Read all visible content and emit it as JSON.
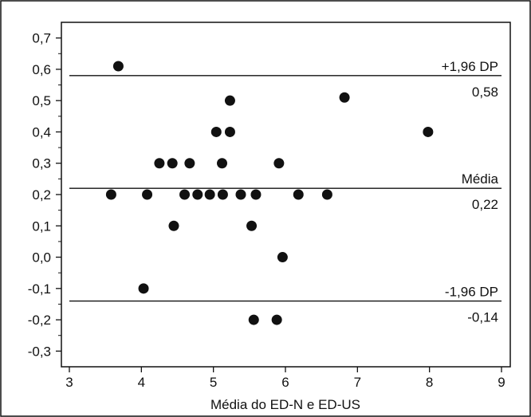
{
  "chart_data": {
    "type": "scatter",
    "title": "",
    "xlabel": "Média do ED-N e ED-US",
    "ylabel": "",
    "xlim": [
      3,
      9
    ],
    "ylim": [
      -0.35,
      0.75
    ],
    "grid": false,
    "x_ticks": [
      {
        "value": 3,
        "label": "3"
      },
      {
        "value": 4,
        "label": "4"
      },
      {
        "value": 5,
        "label": "5"
      },
      {
        "value": 6,
        "label": "6"
      },
      {
        "value": 7,
        "label": "7"
      },
      {
        "value": 8,
        "label": "8"
      },
      {
        "value": 9,
        "label": "9"
      }
    ],
    "y_ticks": [
      {
        "value": -0.3,
        "label": "-0,3"
      },
      {
        "value": -0.2,
        "label": "-0,2"
      },
      {
        "value": -0.1,
        "label": "-0,1"
      },
      {
        "value": 0.0,
        "label": "0,0"
      },
      {
        "value": 0.1,
        "label": "0,1"
      },
      {
        "value": 0.2,
        "label": "0,2"
      },
      {
        "value": 0.3,
        "label": "0,3"
      },
      {
        "value": 0.4,
        "label": "0,4"
      },
      {
        "value": 0.5,
        "label": "0,5"
      },
      {
        "value": 0.6,
        "label": "0,6"
      },
      {
        "value": 0.7,
        "label": "0,7"
      }
    ],
    "reference_lines": [
      {
        "id": "upper",
        "value": 0.58,
        "label": "+1,96 DP",
        "value_label": "0,58"
      },
      {
        "id": "mean",
        "value": 0.22,
        "label": "Média",
        "value_label": "0,22"
      },
      {
        "id": "lower",
        "value": -0.14,
        "label": "-1,96 DP",
        "value_label": "-0,14"
      }
    ],
    "points": [
      {
        "x": 3.58,
        "y": 0.2
      },
      {
        "x": 3.68,
        "y": 0.61
      },
      {
        "x": 4.03,
        "y": -0.1
      },
      {
        "x": 4.08,
        "y": 0.2
      },
      {
        "x": 4.25,
        "y": 0.3
      },
      {
        "x": 4.43,
        "y": 0.3
      },
      {
        "x": 4.45,
        "y": 0.1
      },
      {
        "x": 4.6,
        "y": 0.2
      },
      {
        "x": 4.67,
        "y": 0.3
      },
      {
        "x": 4.78,
        "y": 0.2
      },
      {
        "x": 4.95,
        "y": 0.2
      },
      {
        "x": 5.04,
        "y": 0.4
      },
      {
        "x": 5.12,
        "y": 0.3
      },
      {
        "x": 5.13,
        "y": 0.2
      },
      {
        "x": 5.23,
        "y": 0.5
      },
      {
        "x": 5.23,
        "y": 0.4
      },
      {
        "x": 5.38,
        "y": 0.2
      },
      {
        "x": 5.53,
        "y": 0.1
      },
      {
        "x": 5.56,
        "y": -0.2
      },
      {
        "x": 5.59,
        "y": 0.2
      },
      {
        "x": 5.88,
        "y": -0.2
      },
      {
        "x": 5.91,
        "y": 0.3
      },
      {
        "x": 5.96,
        "y": 0.0
      },
      {
        "x": 6.18,
        "y": 0.2
      },
      {
        "x": 6.58,
        "y": 0.2
      },
      {
        "x": 6.82,
        "y": 0.51
      },
      {
        "x": 7.98,
        "y": 0.4
      }
    ],
    "colors": {
      "marker": "#111111",
      "line": "#111111",
      "frame": "#111111",
      "background": "#ffffff"
    }
  }
}
